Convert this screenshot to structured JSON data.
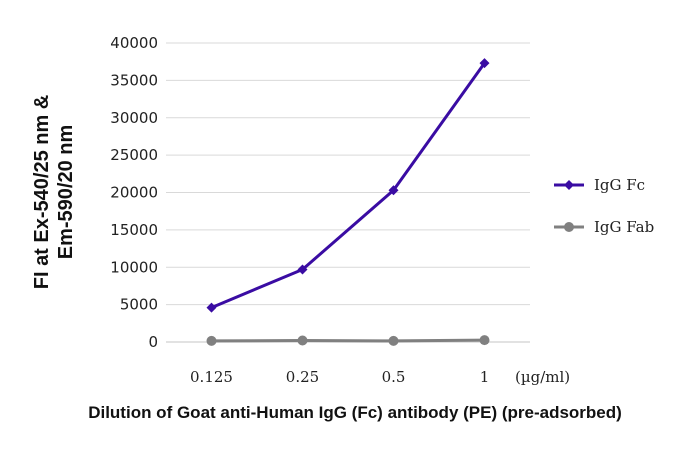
{
  "chart_data": {
    "type": "line",
    "categories": [
      "0.125",
      "0.25",
      "0.5",
      "1"
    ],
    "x_unit": "(µg/ml)",
    "series": [
      {
        "name": "IgG Fc",
        "values": [
          4600,
          9700,
          20300,
          37300
        ],
        "color": "#3a0ca3",
        "marker": "diamond"
      },
      {
        "name": "IgG Fab",
        "values": [
          150,
          200,
          150,
          250
        ],
        "color": "#808080",
        "marker": "circle"
      }
    ],
    "xlabel": "Dilution of Goat anti-Human IgG (Fc) antibody (PE) (pre-adsorbed)",
    "ylabel_line1": "FI at Ex-540/25 nm &",
    "ylabel_line2": "Em-590/20 nm",
    "ylim": [
      0,
      40000
    ],
    "yticks": [
      0,
      5000,
      10000,
      15000,
      20000,
      25000,
      30000,
      35000,
      40000
    ],
    "grid": true,
    "legend": "right",
    "grid_color": "#d9d9d9"
  }
}
